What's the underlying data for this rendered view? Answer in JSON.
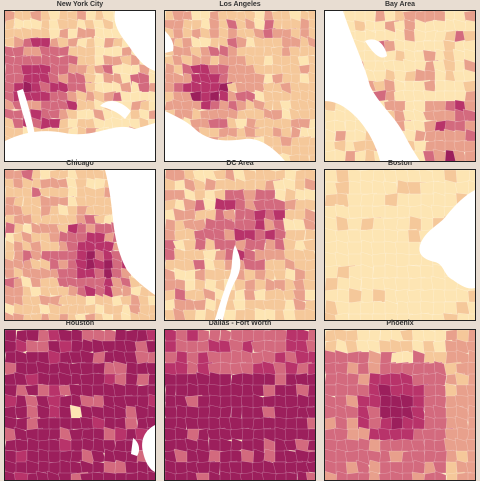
{
  "figure": {
    "panels": [
      {
        "title": "New York City",
        "base": "#fde5b3",
        "accent": "#b8336a",
        "water": "#ffffff"
      },
      {
        "title": "Los Angeles",
        "base": "#fde5b3",
        "accent": "#b8336a",
        "water": "#ffffff"
      },
      {
        "title": "Bay Area",
        "base": "#fde5b3",
        "accent": "#d9848a",
        "water": "#ffffff"
      },
      {
        "title": "Chicago",
        "base": "#fde5b3",
        "accent": "#b8336a",
        "water": "#ffffff"
      },
      {
        "title": "DC Area",
        "base": "#fde5b3",
        "accent": "#b8336a",
        "water": "#ffffff"
      },
      {
        "title": "Boston",
        "base": "#fde8bc",
        "accent": "#f5c89a",
        "water": "#ffffff"
      },
      {
        "title": "Houston",
        "base": "#b8336a",
        "accent": "#e8a08c",
        "water": "#ffffff"
      },
      {
        "title": "Dallas - Fort Worth",
        "base": "#b8336a",
        "accent": "#e8a08c",
        "water": "#ffffff"
      },
      {
        "title": "Phoenix",
        "base": "#d36a7e",
        "accent": "#fde5b3",
        "water": "#ffffff"
      }
    ],
    "palette": {
      "lightest": "#fde5b3",
      "light": "#f5c89a",
      "mid": "#e8a08c",
      "midDark": "#d36a7e",
      "dark": "#b8336a",
      "darkest": "#9c1f5c",
      "water": "#ffffff",
      "background": "#e8ddd2"
    }
  }
}
